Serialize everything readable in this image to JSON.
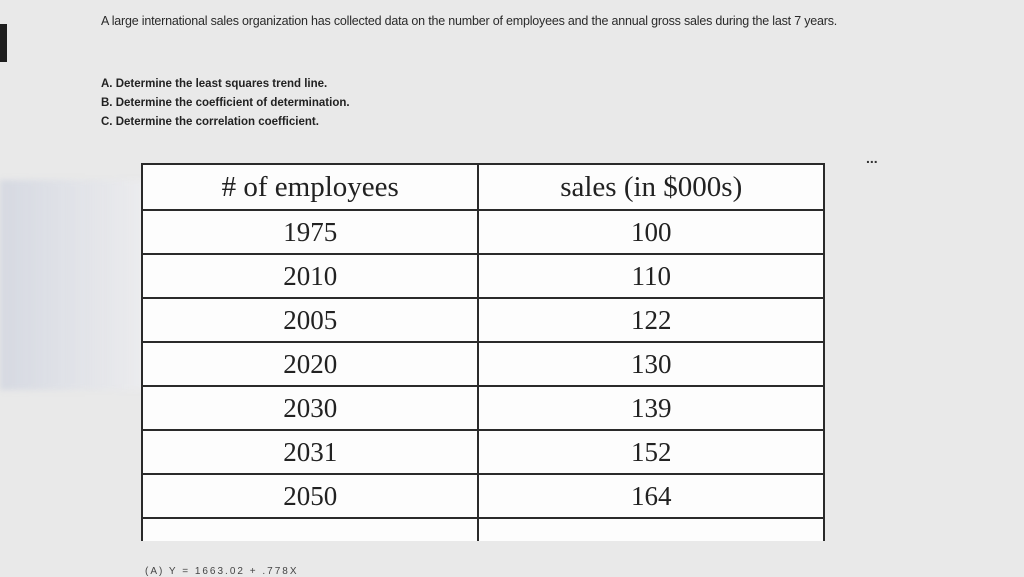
{
  "question": {
    "intro": "A large international sales organization has collected data on the number of employees and the annual gross sales during the last 7 years.",
    "tasks": [
      "A. Determine the least squares trend line.",
      "B. Determine the coefficient of determination.",
      "C. Determine the correlation coefficient."
    ]
  },
  "more_indicator": "...",
  "table": {
    "headers": [
      "# of employees",
      "sales (in $000s)"
    ],
    "rows": [
      [
        "1975",
        "100"
      ],
      [
        "2010",
        "110"
      ],
      [
        "2005",
        "122"
      ],
      [
        "2020",
        "130"
      ],
      [
        "2030",
        "139"
      ],
      [
        "2031",
        "152"
      ],
      [
        "2050",
        "164"
      ]
    ]
  },
  "partial_answer": "(A) Y = 1663.02 + .778X"
}
